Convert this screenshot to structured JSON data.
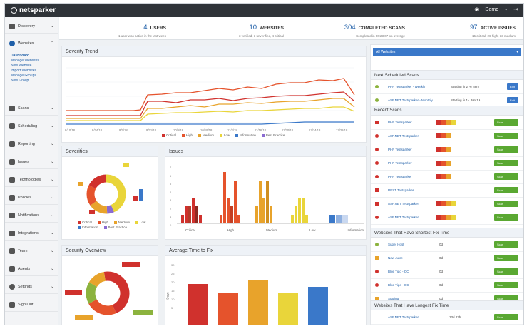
{
  "app": {
    "brand": "netsparker",
    "user": "Demo"
  },
  "sidebar": {
    "items": [
      {
        "label": "Discovery",
        "top": 0
      },
      {
        "label": "Websites",
        "top": 0
      },
      {
        "label": "Scans",
        "top": 0
      },
      {
        "label": "Scheduling",
        "top": 0
      },
      {
        "label": "Reporting",
        "top": 0
      },
      {
        "label": "Issues",
        "top": 0
      },
      {
        "label": "Technologies",
        "top": 0
      },
      {
        "label": "Policies",
        "top": 0
      },
      {
        "label": "Notifications",
        "top": 0
      },
      {
        "label": "Integrations",
        "top": 0
      },
      {
        "label": "Team",
        "top": 0
      },
      {
        "label": "Agents",
        "top": 0
      },
      {
        "label": "Settings",
        "top": 0
      },
      {
        "label": "Sign Out",
        "top": 0
      }
    ],
    "websites_sub": [
      "Dashboard",
      "Manage Websites",
      "New Website",
      "Import Websites",
      "Manage Groups",
      "New Group"
    ]
  },
  "stats": [
    {
      "num": "4",
      "label": "USERS",
      "sub": "1 user was active in the last week"
    },
    {
      "num": "10",
      "label": "WEBSITES",
      "sub": "3 verified, 3 unverified, 4 critical"
    },
    {
      "num": "304",
      "label": "COMPLETED SCANS",
      "sub": "Completed in 00:23:07 on average"
    },
    {
      "num": "97",
      "label": "ACTIVE ISSUES",
      "sub": "15 critical, 26 high, 33 medium"
    }
  ],
  "panels": {
    "severity_trend": "Severity Trend",
    "severities": "Severities",
    "issues": "Issues",
    "security_overview": "Security Overview",
    "avg_fix": "Average Time to Fix"
  },
  "trend_legend": [
    "Critical",
    "High",
    "Medium",
    "Low",
    "Information",
    "Best Practice"
  ],
  "trend_x": [
    "8/10/18",
    "8/24/18",
    "9/7/18",
    "9/21/18",
    "10/5/18",
    "10/19/18",
    "11/2/18",
    "11/16/18",
    "11/30/18",
    "12/14/18",
    "12/28/18"
  ],
  "sev_legend": [
    "Critical",
    "High",
    "Medium",
    "Low",
    "Information",
    "Best Practice"
  ],
  "issues_x": [
    "Critical",
    "High",
    "Medium",
    "Low",
    "Information"
  ],
  "issues_y": [
    "7",
    "6",
    "5",
    "4",
    "3",
    "2",
    "1",
    "0"
  ],
  "avg_fix_y": [
    "30",
    "25",
    "20",
    "15",
    "10",
    "5"
  ],
  "avg_fix_ylabel": "Days",
  "right": {
    "selector": "All Websites",
    "next_scans": "Next Scheduled Scans",
    "recent_scans": "Recent Scans",
    "shortest_fix": "Websites That Have Shortest Fix Time",
    "longest_fix": "Websites That Have Longest Fix Time",
    "next_rows": [
      {
        "name": "PHP Testsparker - Weekly",
        "when": "Starting in 2 Hr 59m",
        "btn": "Edit"
      },
      {
        "name": "ASP.NET Testsparker - Monthly",
        "when": "Starting in 14 Jan 19",
        "btn": "Edit"
      }
    ],
    "recent_rows": [
      {
        "name": "PHP Testsparker",
        "btn": "Scan"
      },
      {
        "name": "ASP.NET Testsparker",
        "btn": "Scan"
      },
      {
        "name": "PHP Testsparker",
        "btn": "Scan"
      },
      {
        "name": "PHP Testsparker",
        "btn": "Scan"
      },
      {
        "name": "PHP Testsparker",
        "btn": "Scan"
      },
      {
        "name": "REST Testsparker",
        "btn": "Scan"
      },
      {
        "name": "ASP.NET Testsparker",
        "btn": "Scan"
      },
      {
        "name": "ASP.NET Testsparker",
        "btn": "Scan"
      }
    ],
    "short_rows": [
      {
        "name": "Super Host",
        "val": "0d",
        "btn": "Scan"
      },
      {
        "name": "New Juice",
        "val": "0d",
        "btn": "Scan"
      },
      {
        "name": "Blue Tigo - OC",
        "val": "0d",
        "btn": "Scan"
      },
      {
        "name": "Blue Tigo - OC",
        "val": "0d",
        "btn": "Scan"
      },
      {
        "name": "Staging",
        "val": "0d",
        "btn": "Scan"
      }
    ],
    "long_rows": [
      {
        "name": "ASP.NET Testsparker",
        "val": "13d 23h",
        "btn": "Scan"
      }
    ]
  },
  "colors": {
    "critical": "#d0312d",
    "high": "#e5532c",
    "medium": "#e8a32b",
    "low": "#e9d53a",
    "info": "#3a78c9",
    "best": "#8a6bd1",
    "ok": "#5aa832"
  }
}
